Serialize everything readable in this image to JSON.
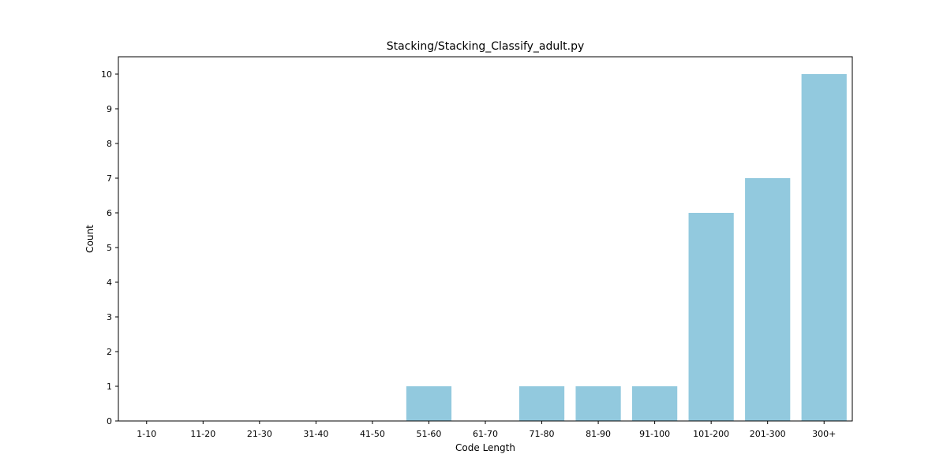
{
  "chart_data": {
    "type": "bar",
    "title": "Stacking/Stacking_Classify_adult.py",
    "xlabel": "Code Length",
    "ylabel": "Count",
    "categories": [
      "1-10",
      "11-20",
      "21-30",
      "31-40",
      "41-50",
      "51-60",
      "61-70",
      "71-80",
      "81-90",
      "91-100",
      "101-200",
      "201-300",
      "300+"
    ],
    "values": [
      0,
      0,
      0,
      0,
      0,
      1,
      0,
      1,
      1,
      1,
      6,
      7,
      10
    ],
    "ylim": [
      0,
      10.5
    ],
    "yticks": [
      0,
      1,
      2,
      3,
      4,
      5,
      6,
      7,
      8,
      9,
      10
    ],
    "bar_color": "#92c9de",
    "grid": false,
    "legend": false
  }
}
